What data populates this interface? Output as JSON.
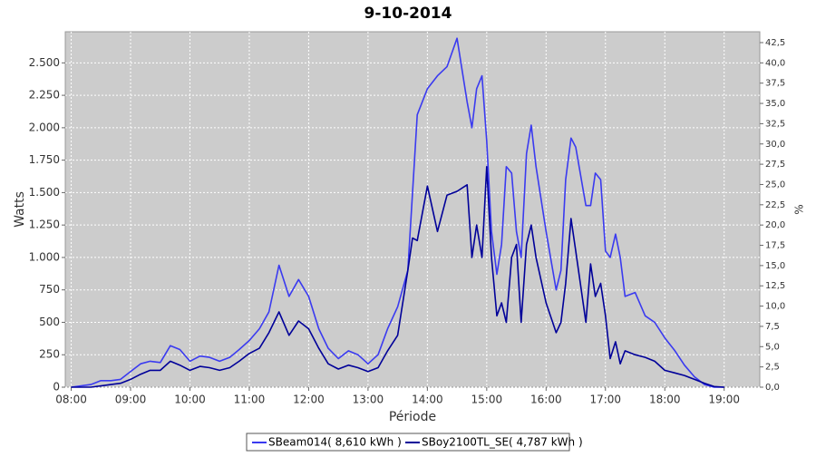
{
  "chart_data": {
    "type": "line",
    "title": "9-10-2014",
    "x_label": "Période",
    "y_label": "Watts",
    "y2_label": "%",
    "grid": true,
    "legend": "bottom",
    "x": [
      8,
      8.33,
      8.5,
      8.67,
      8.83,
      9,
      9.17,
      9.33,
      9.5,
      9.67,
      9.83,
      10,
      10.17,
      10.33,
      10.5,
      10.67,
      10.83,
      11,
      11.17,
      11.33,
      11.5,
      11.67,
      11.83,
      12,
      12.17,
      12.33,
      12.5,
      12.67,
      12.83,
      13,
      13.17,
      13.33,
      13.5,
      13.67,
      13.75,
      13.83,
      14,
      14.17,
      14.33,
      14.5,
      14.67,
      14.75,
      14.83,
      14.92,
      15,
      15.08,
      15.17,
      15.25,
      15.33,
      15.42,
      15.5,
      15.58,
      15.67,
      15.75,
      15.83,
      16,
      16.17,
      16.25,
      16.33,
      16.42,
      16.5,
      16.67,
      16.75,
      16.83,
      16.92,
      17,
      17.08,
      17.17,
      17.25,
      17.33,
      17.5,
      17.67,
      17.83,
      18,
      18.17,
      18.33,
      18.5,
      18.67,
      18.83,
      19
    ],
    "xlim": [
      7.9,
      19.6
    ],
    "xticks": [
      {
        "value": 8,
        "label": "08:00"
      },
      {
        "value": 9,
        "label": "09:00"
      },
      {
        "value": 10,
        "label": "10:00"
      },
      {
        "value": 11,
        "label": "11:00"
      },
      {
        "value": 12,
        "label": "12:00"
      },
      {
        "value": 13,
        "label": "13:00"
      },
      {
        "value": 14,
        "label": "14:00"
      },
      {
        "value": 15,
        "label": "15:00"
      },
      {
        "value": 16,
        "label": "16:00"
      },
      {
        "value": 17,
        "label": "17:00"
      },
      {
        "value": 18,
        "label": "18:00"
      },
      {
        "value": 19,
        "label": "19:00"
      }
    ],
    "ylim": [
      0,
      2740
    ],
    "yticks": [
      0,
      250,
      500,
      750,
      {
        "value": 1000,
        "label": "1.000"
      },
      {
        "value": 1250,
        "label": "1.250"
      },
      {
        "value": 1500,
        "label": "1.500"
      },
      {
        "value": 1750,
        "label": "1.750"
      },
      {
        "value": 2000,
        "label": "2.000"
      },
      {
        "value": 2250,
        "label": "2.250"
      },
      {
        "value": 2500,
        "label": "2.500"
      }
    ],
    "y2lim": [
      0,
      43.84
    ],
    "y2ticks": [
      {
        "value": 0,
        "label": "0,0"
      },
      {
        "value": 2.5,
        "label": "2,5"
      },
      {
        "value": 5,
        "label": "5,0"
      },
      {
        "value": 7.5,
        "label": "7,5"
      },
      {
        "value": 10,
        "label": "10,0"
      },
      {
        "value": 12.5,
        "label": "12,5"
      },
      {
        "value": 15,
        "label": "15,0"
      },
      {
        "value": 17.5,
        "label": "17,5"
      },
      {
        "value": 20,
        "label": "20,0"
      },
      {
        "value": 22.5,
        "label": "22,5"
      },
      {
        "value": 25,
        "label": "25,0"
      },
      {
        "value": 27.5,
        "label": "27,5"
      },
      {
        "value": 30,
        "label": "30,0"
      },
      {
        "value": 32.5,
        "label": "32,5"
      },
      {
        "value": 35,
        "label": "35,0"
      },
      {
        "value": 37.5,
        "label": "37,5"
      },
      {
        "value": 40,
        "label": "40,0"
      },
      {
        "value": 42.5,
        "label": "42,5"
      }
    ],
    "series": [
      {
        "name": "SBeam014( 8,610 kWh )",
        "color": "#3a3af0",
        "values": [
          0,
          20,
          50,
          50,
          60,
          120,
          180,
          200,
          190,
          320,
          290,
          200,
          240,
          230,
          200,
          230,
          290,
          360,
          450,
          580,
          940,
          700,
          830,
          700,
          450,
          300,
          220,
          280,
          250,
          180,
          250,
          450,
          620,
          900,
          1500,
          2100,
          2300,
          2400,
          2470,
          2690,
          2200,
          2000,
          2300,
          2400,
          1900,
          1200,
          870,
          1100,
          1700,
          1650,
          1200,
          1000,
          1800,
          2020,
          1700,
          1200,
          750,
          900,
          1600,
          1920,
          1850,
          1400,
          1400,
          1650,
          1600,
          1050,
          1000,
          1180,
          1000,
          700,
          730,
          550,
          500,
          380,
          280,
          170,
          80,
          20,
          0,
          0
        ]
      },
      {
        "name": "SBoy2100TL_SE( 4,787 kWh )",
        "color": "#000099",
        "values": [
          0,
          0,
          10,
          20,
          30,
          60,
          100,
          130,
          130,
          200,
          170,
          130,
          160,
          150,
          130,
          150,
          200,
          260,
          300,
          420,
          580,
          400,
          510,
          450,
          300,
          180,
          140,
          170,
          150,
          120,
          150,
          280,
          400,
          900,
          1150,
          1130,
          1550,
          1200,
          1480,
          1510,
          1560,
          1000,
          1250,
          1000,
          1700,
          1000,
          550,
          650,
          500,
          1000,
          1100,
          500,
          1100,
          1250,
          1000,
          650,
          420,
          500,
          800,
          1300,
          1050,
          500,
          950,
          700,
          800,
          550,
          220,
          350,
          180,
          280,
          250,
          230,
          200,
          130,
          110,
          90,
          60,
          30,
          5,
          0
        ]
      }
    ]
  }
}
